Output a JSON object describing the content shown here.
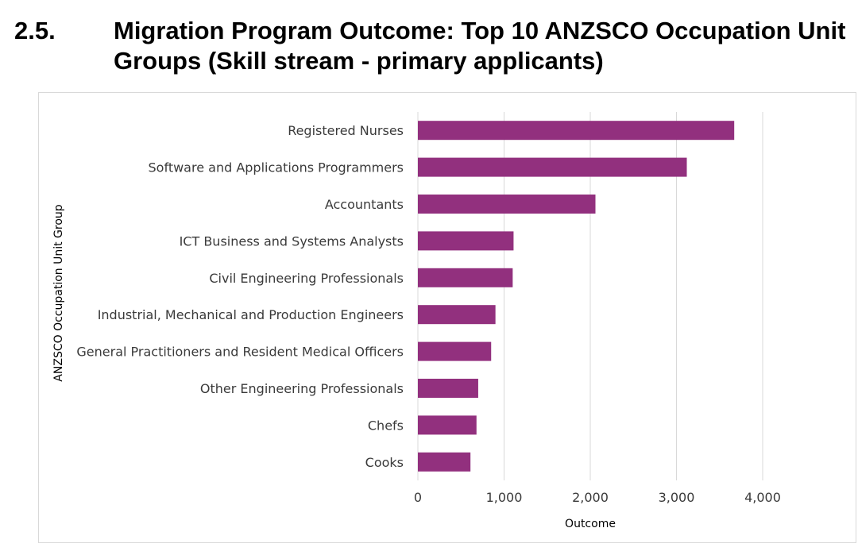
{
  "heading": {
    "number": "2.5.",
    "title": "Migration Program Outcome: Top 10 ANZSCO Occupation Unit Groups (Skill stream - primary applicants)"
  },
  "colors": {
    "bar": "#92307E",
    "gridline": "#d9d9d9",
    "text": "#3a3a3a"
  },
  "chart_data": {
    "type": "bar",
    "orientation": "horizontal",
    "title": "",
    "xlabel": "Outcome",
    "ylabel": "ANZSCO Occupation Unit Group",
    "categories": [
      "Registered Nurses",
      "Software and Applications Programmers",
      "Accountants",
      "ICT Business and Systems Analysts",
      "Civil Engineering Professionals",
      "Industrial, Mechanical and Production Engineers",
      "General Practitioners and Resident Medical Officers",
      "Other Engineering Professionals",
      "Chefs",
      "Cooks"
    ],
    "values": [
      3670,
      3120,
      2060,
      1110,
      1100,
      900,
      850,
      700,
      680,
      610
    ],
    "xlim": [
      0,
      4000
    ],
    "xticks": [
      0,
      1000,
      2000,
      3000,
      4000
    ],
    "xtick_labels": [
      "0",
      "1,000",
      "2,000",
      "3,000",
      "4,000"
    ],
    "grid": "vertical",
    "legend": "none"
  }
}
